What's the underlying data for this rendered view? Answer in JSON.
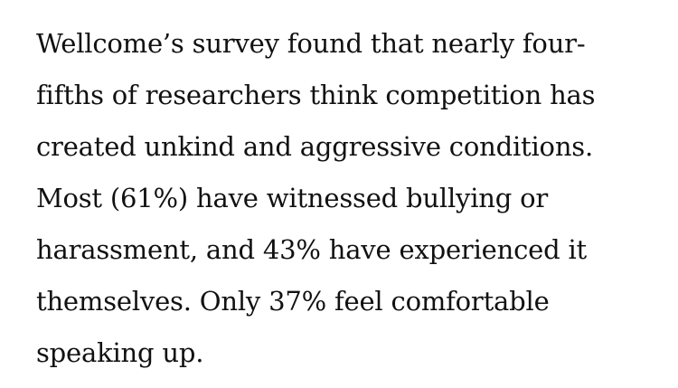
{
  "article": {
    "lines": [
      "Wellcome’s survey found that nearly four-",
      "fifths of researchers think competition has",
      "created unkind and aggressive conditions.",
      "Most (61%) have witnessed bullying or",
      "harassment, and 43% have experienced it",
      "themselves. Only 37% feel comfortable",
      "speaking up."
    ]
  }
}
